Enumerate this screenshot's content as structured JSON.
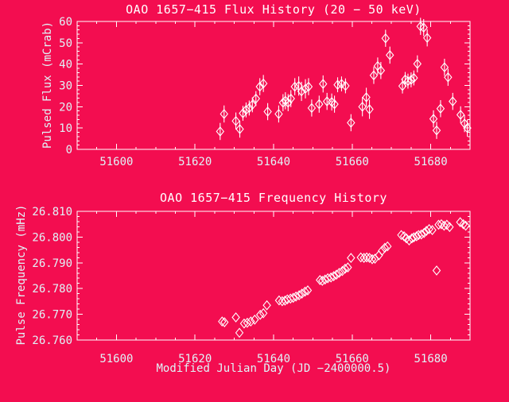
{
  "colors": {
    "background": "#F30D50",
    "frame": "#FFFFFF",
    "title_text": "#FFFFFF",
    "axis_text": "#E0F4F8",
    "marker": "#FFFFFF"
  },
  "chart_data": [
    {
      "name": "flux",
      "type": "scatter",
      "title": "OAO 1657−415 Flux History (20 − 50 keV)",
      "ylabel": "Pulsed Flux (mCrab)",
      "xlabel": "",
      "xlim": [
        51590,
        51690
      ],
      "ylim": [
        0,
        60
      ],
      "xticks": [
        51600,
        51620,
        51640,
        51660,
        51680
      ],
      "xtick_labels": [
        "51600",
        "51620",
        "51640",
        "51660",
        "51680"
      ],
      "x_minor": 5,
      "yticks": [
        0,
        10,
        20,
        30,
        40,
        50,
        60
      ],
      "ytick_labels": [
        "0",
        "10",
        "20",
        "30",
        "40",
        "50",
        "60"
      ],
      "y_minor": 2,
      "marker": "open-diamond",
      "error_bars": "vertical",
      "points": [
        [
          51626.4,
          8.4,
          4
        ],
        [
          51627.4,
          16.6,
          4
        ],
        [
          51630.4,
          13.3,
          4
        ],
        [
          51631.4,
          9.5,
          4
        ],
        [
          51632.2,
          16.9,
          3.5
        ],
        [
          51633.0,
          18.5,
          3.5
        ],
        [
          51633.8,
          19.4,
          3.5
        ],
        [
          51634.6,
          20.9,
          3.5
        ],
        [
          51635.5,
          23.8,
          3.5
        ],
        [
          51636.5,
          29.4,
          4
        ],
        [
          51637.4,
          30.9,
          4
        ],
        [
          51638.5,
          17.7,
          4
        ],
        [
          51641.3,
          16.6,
          4
        ],
        [
          51642.4,
          21.9,
          4
        ],
        [
          51643.0,
          22.8,
          4
        ],
        [
          51643.7,
          21.9,
          4
        ],
        [
          51644.4,
          23.8,
          4
        ],
        [
          51645.4,
          29.4,
          4
        ],
        [
          51646.4,
          29.7,
          4.5
        ],
        [
          51647.1,
          27.2,
          4.5
        ],
        [
          51648.1,
          28.4,
          4.5
        ],
        [
          51648.9,
          29.4,
          4
        ],
        [
          51649.7,
          19.4,
          4
        ],
        [
          51651.6,
          21.2,
          4
        ],
        [
          51652.6,
          30.7,
          4
        ],
        [
          51653.6,
          22.5,
          4
        ],
        [
          51654.8,
          22.2,
          4
        ],
        [
          51655.5,
          21.2,
          4
        ],
        [
          51656.3,
          30.3,
          3.5
        ],
        [
          51657.3,
          30.7,
          3.5
        ],
        [
          51658.3,
          29.8,
          3.5
        ],
        [
          51659.7,
          12.5,
          4
        ],
        [
          51662.6,
          20.0,
          4.5
        ],
        [
          51663.6,
          24.4,
          4.5
        ],
        [
          51664.4,
          18.8,
          4.5
        ],
        [
          51665.5,
          34.7,
          4
        ],
        [
          51666.5,
          39.1,
          4
        ],
        [
          51667.3,
          37.0,
          4
        ],
        [
          51668.5,
          52.1,
          4
        ],
        [
          51669.6,
          44.2,
          4
        ],
        [
          51672.8,
          29.7,
          3.5
        ],
        [
          51673.5,
          32.8,
          3.5
        ],
        [
          51674.2,
          32.0,
          3.5
        ],
        [
          51675.0,
          32.6,
          3.5
        ],
        [
          51675.7,
          33.5,
          3.5
        ],
        [
          51676.6,
          40.1,
          4
        ],
        [
          51677.4,
          57.7,
          4
        ],
        [
          51678.2,
          57.1,
          4
        ],
        [
          51679.1,
          52.3,
          4
        ],
        [
          51680.7,
          14.3,
          4
        ],
        [
          51681.5,
          8.9,
          4
        ],
        [
          51682.5,
          19.1,
          4
        ],
        [
          51683.5,
          38.5,
          4
        ],
        [
          51684.4,
          33.8,
          4
        ],
        [
          51685.6,
          22.5,
          4
        ],
        [
          51687.6,
          16.2,
          4
        ],
        [
          51688.6,
          12.1,
          4
        ],
        [
          51689.3,
          10.0,
          4
        ]
      ]
    },
    {
      "name": "frequency",
      "type": "scatter",
      "title": "OAO 1657−415 Frequency History",
      "ylabel": "Pulse Frequency (mHz)",
      "xlabel": "Modified Julian Day (JD −2400000.5)",
      "xlim": [
        51590,
        51690
      ],
      "ylim": [
        26.76,
        26.81
      ],
      "xticks": [
        51600,
        51620,
        51640,
        51660,
        51680
      ],
      "xtick_labels": [
        "51600",
        "51620",
        "51640",
        "51660",
        "51680"
      ],
      "x_minor": 5,
      "yticks": [
        26.76,
        26.77,
        26.78,
        26.79,
        26.8,
        26.81
      ],
      "ytick_labels": [
        "26.760",
        "26.770",
        "26.780",
        "26.790",
        "26.800",
        "26.810"
      ],
      "y_minor": 0.002,
      "marker": "open-diamond",
      "error_bars": "vertical",
      "points": [
        [
          51626.9,
          26.7672,
          0.0006
        ],
        [
          51627.5,
          26.7669,
          0.0006
        ],
        [
          51630.4,
          26.7688,
          0.0006
        ],
        [
          51631.3,
          26.7628,
          0.0015
        ],
        [
          51632.5,
          26.7664,
          0.0005
        ],
        [
          51633.3,
          26.7667,
          0.0005
        ],
        [
          51634.2,
          26.7672,
          0.0005
        ],
        [
          51635.2,
          26.7679,
          0.0005
        ],
        [
          51636.6,
          26.7698,
          0.0005
        ],
        [
          51637.4,
          26.7704,
          0.0005
        ],
        [
          51638.3,
          26.7735,
          0.0008
        ],
        [
          51641.4,
          26.7754,
          0.0005
        ],
        [
          51642.2,
          26.7751,
          0.0005
        ],
        [
          51642.9,
          26.7753,
          0.0005
        ],
        [
          51643.5,
          26.7758,
          0.0005
        ],
        [
          51644.3,
          26.7761,
          0.0005
        ],
        [
          51645.0,
          26.7764,
          0.0005
        ],
        [
          51645.7,
          26.7769,
          0.0005
        ],
        [
          51646.5,
          26.7774,
          0.0005
        ],
        [
          51647.2,
          26.778,
          0.0005
        ],
        [
          51648.0,
          26.7788,
          0.0005
        ],
        [
          51648.7,
          26.7793,
          0.0005
        ],
        [
          51651.8,
          26.7833,
          0.0005
        ],
        [
          51652.4,
          26.783,
          0.0005
        ],
        [
          51653.1,
          26.7835,
          0.0005
        ],
        [
          51653.8,
          26.784,
          0.0005
        ],
        [
          51654.6,
          26.7843,
          0.0005
        ],
        [
          51655.3,
          26.7848,
          0.0005
        ],
        [
          51656.0,
          26.7854,
          0.0005
        ],
        [
          51656.7,
          26.7861,
          0.0005
        ],
        [
          51657.5,
          26.7868,
          0.0005
        ],
        [
          51658.2,
          26.7877,
          0.0005
        ],
        [
          51658.9,
          26.7882,
          0.0005
        ],
        [
          51659.7,
          26.7919,
          0.0008
        ],
        [
          51662.2,
          26.7921,
          0.0005
        ],
        [
          51663.0,
          26.7919,
          0.0005
        ],
        [
          51663.7,
          26.7921,
          0.0015
        ],
        [
          51664.4,
          26.7919,
          0.0005
        ],
        [
          51665.1,
          26.7914,
          0.0005
        ],
        [
          51665.8,
          26.7916,
          0.0005
        ],
        [
          51666.8,
          26.7929,
          0.0005
        ],
        [
          51667.6,
          26.7947,
          0.0005
        ],
        [
          51668.3,
          26.7958,
          0.0005
        ],
        [
          51669.0,
          26.7964,
          0.0005
        ],
        [
          51672.5,
          26.8008,
          0.0005
        ],
        [
          51673.2,
          26.8003,
          0.0005
        ],
        [
          51673.8,
          26.7995,
          0.0005
        ],
        [
          51674.5,
          26.7987,
          0.0005
        ],
        [
          51675.2,
          26.7995,
          0.0005
        ],
        [
          51675.7,
          26.7999,
          0.0005
        ],
        [
          51676.4,
          26.8003,
          0.0005
        ],
        [
          51676.9,
          26.8008,
          0.0005
        ],
        [
          51677.6,
          26.801,
          0.0005
        ],
        [
          51678.3,
          26.8016,
          0.0005
        ],
        [
          51678.9,
          26.8024,
          0.0005
        ],
        [
          51679.6,
          26.8031,
          0.0005
        ],
        [
          51680.4,
          26.8027,
          0.0005
        ],
        [
          51681.5,
          26.787,
          0.0008
        ],
        [
          51682.0,
          26.8048,
          0.0005
        ],
        [
          51682.7,
          26.805,
          0.0005
        ],
        [
          51683.4,
          26.8044,
          0.0005
        ],
        [
          51684.1,
          26.8048,
          0.0005
        ],
        [
          51684.8,
          26.8039,
          0.0005
        ],
        [
          51687.5,
          26.8058,
          0.0005
        ],
        [
          51688.3,
          26.805,
          0.0005
        ],
        [
          51688.9,
          26.8044,
          0.0005
        ]
      ]
    }
  ]
}
